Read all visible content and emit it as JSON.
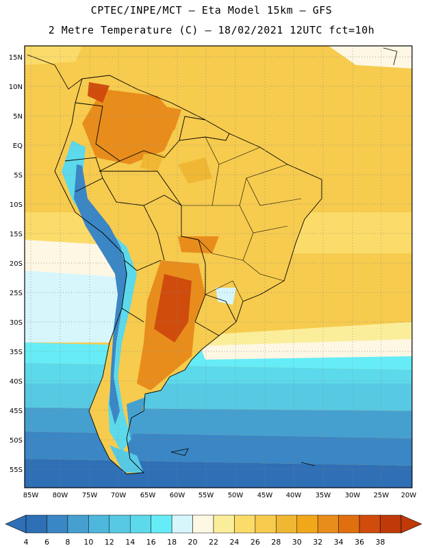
{
  "title": {
    "line1": "CPTEC/INPE/MCT –  Eta Model 15km – GFS",
    "line2": "2 Metre Temperature (C) – 18/02/2021 12UTC fct=10h"
  },
  "axes": {
    "lat_labels": [
      "15N",
      "10N",
      "5N",
      "EQ",
      "5S",
      "10S",
      "15S",
      "20S",
      "25S",
      "30S",
      "35S",
      "40S",
      "45S",
      "50S",
      "55S"
    ],
    "lon_labels": [
      "85W",
      "80W",
      "75W",
      "70W",
      "65W",
      "60W",
      "55W",
      "50W",
      "45W",
      "40W",
      "35W",
      "30W",
      "25W",
      "20W"
    ]
  },
  "colorbar": {
    "labels": [
      "4",
      "6",
      "8",
      "10",
      "12",
      "14",
      "16",
      "18",
      "20",
      "22",
      "24",
      "26",
      "28",
      "30",
      "32",
      "34",
      "36",
      "38"
    ],
    "colors": [
      "#2f6fb5",
      "#3b86c4",
      "#45a0d0",
      "#4fb6dc",
      "#57c9e3",
      "#5cd9ea",
      "#66ecf6",
      "#d6f6fb",
      "#fdf7e3",
      "#fbee9a",
      "#fbdc6a",
      "#f6cb4e",
      "#efb733",
      "#f0a71a",
      "#e88d1c",
      "#e06f10",
      "#d04c0c",
      "#bf3a08"
    ]
  },
  "map_colors": {
    "hot": "#f6cb4e",
    "warm": "#fbdc6a",
    "orange": "#e88d1c",
    "dark_orange": "#d04c0c",
    "pale": "#fdf7e3",
    "cool": "#d6f6fb",
    "cyan": "#5cd9ea",
    "blue": "#3b86c4",
    "deep_blue": "#2f6fb5",
    "border": "#000000"
  }
}
